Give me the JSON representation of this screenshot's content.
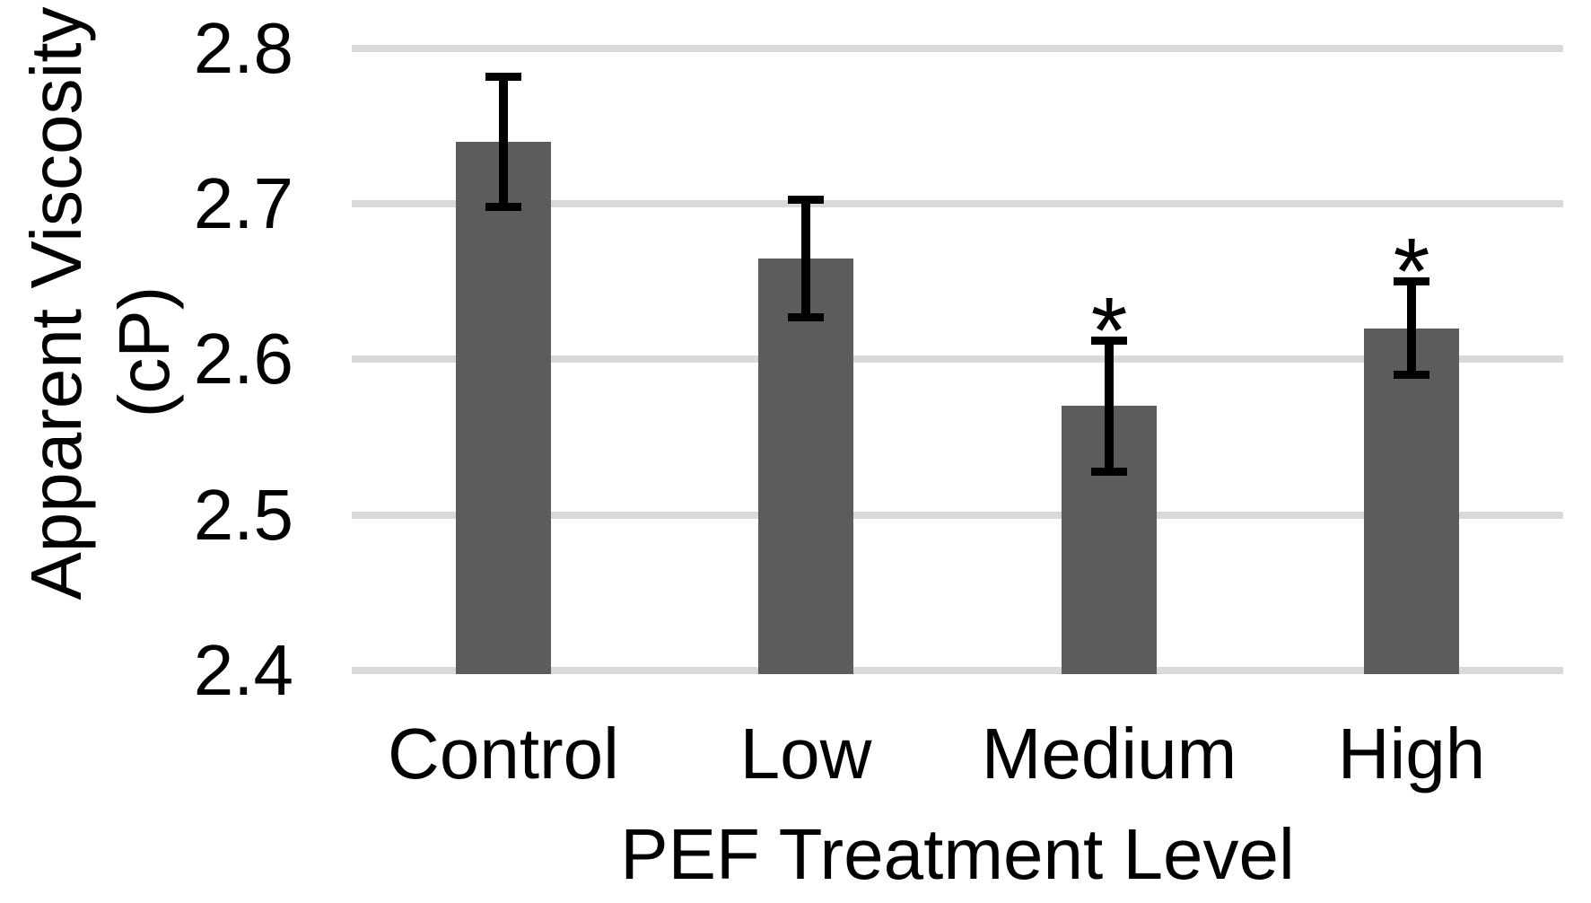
{
  "chart_data": {
    "type": "bar",
    "categories": [
      "Control",
      "Low",
      "Medium",
      "High"
    ],
    "values": [
      2.74,
      2.665,
      2.57,
      2.62
    ],
    "error_bars": [
      0.042,
      0.038,
      0.042,
      0.03
    ],
    "significance_markers": [
      "",
      "",
      "*",
      "*"
    ],
    "title": "",
    "xlabel": "PEF Treatment Level",
    "ylabel_line1": "Apparent Viscosity",
    "ylabel_line2": "(cP)",
    "ylim": [
      2.4,
      2.8
    ],
    "yticks": [
      2.8,
      2.7,
      2.6,
      2.5,
      2.4
    ],
    "ytick_labels": [
      "2.8",
      "2.7",
      "2.6",
      "2.5",
      "2.4"
    ],
    "grid": true,
    "legend_position": "none",
    "colors": {
      "bar": "#5C5C5C",
      "gridline": "#D9D9D9",
      "error_bar": "#000000",
      "text": "#000000",
      "background": "#FFFFFF"
    }
  }
}
